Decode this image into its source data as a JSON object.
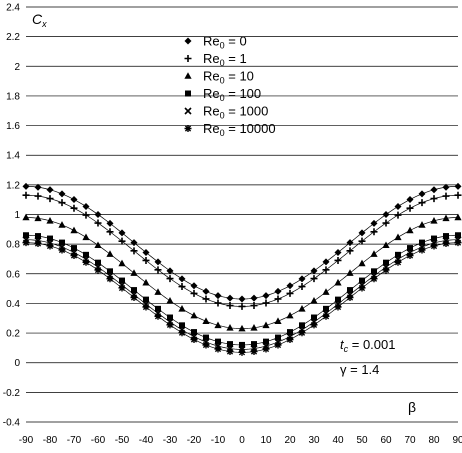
{
  "chart_data": {
    "type": "scatter",
    "ylabel": "C",
    "ylabel_sub": "x",
    "xlabel": "β",
    "xlim": [
      -90,
      90
    ],
    "ylim": [
      -0.4,
      2.4
    ],
    "grid": "horizontal",
    "legend_position": "top-center",
    "x_ticks": [
      "-90",
      "-80",
      "-70",
      "-60",
      "-50",
      "-40",
      "-30",
      "-20",
      "-10",
      "0",
      "10",
      "20",
      "30",
      "40",
      "50",
      "60",
      "70",
      "80",
      "90"
    ],
    "y_ticks": [
      "-0.4",
      "-0.2",
      "0",
      "0.2",
      "0.4",
      "0.6",
      "0.8",
      "1",
      "1.2",
      "1.4",
      "1.6",
      "1.8",
      "2",
      "2.2",
      "2.4"
    ],
    "x": [
      -90,
      -85,
      -80,
      -75,
      -70,
      -65,
      -60,
      -55,
      -50,
      -45,
      -40,
      -35,
      -30,
      -25,
      -20,
      -15,
      -10,
      -5,
      0,
      5,
      10,
      15,
      20,
      25,
      30,
      35,
      40,
      45,
      50,
      55,
      60,
      65,
      70,
      75,
      80,
      85,
      90
    ],
    "series": [
      {
        "name": "Re",
        "name_sub": "0",
        "name_suffix": " = 0",
        "marker": "diamond",
        "ymin": 0.43,
        "ymax": 1.19
      },
      {
        "name": "Re",
        "name_sub": "0",
        "name_suffix": " = 1",
        "marker": "plus",
        "ymin": 0.38,
        "ymax": 1.13
      },
      {
        "name": "Re",
        "name_sub": "0",
        "name_suffix": " = 10",
        "marker": "triangle",
        "ymin": 0.23,
        "ymax": 0.98
      },
      {
        "name": "Re",
        "name_sub": "0",
        "name_suffix": " = 100",
        "marker": "square",
        "ymin": 0.12,
        "ymax": 0.86
      },
      {
        "name": "Re",
        "name_sub": "0",
        "name_suffix": " = 1000",
        "marker": "cross",
        "ymin": 0.09,
        "ymax": 0.83
      },
      {
        "name": "Re",
        "name_sub": "0",
        "name_suffix": " = 10000",
        "marker": "asterisk",
        "ymin": 0.07,
        "ymax": 0.81
      }
    ],
    "annotations": [
      {
        "text": "t",
        "sub": "c",
        "suffix": " = 0.001"
      },
      {
        "text": "γ = 1.4",
        "sub": "",
        "suffix": ""
      }
    ]
  }
}
